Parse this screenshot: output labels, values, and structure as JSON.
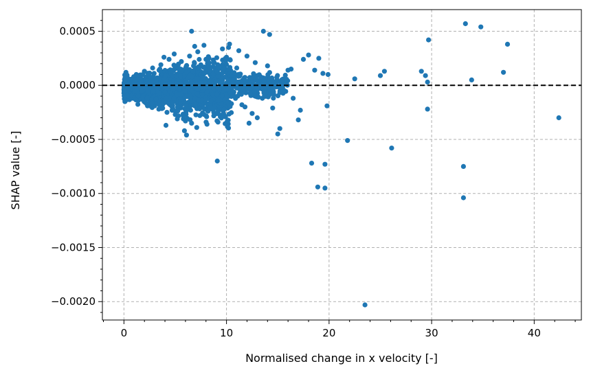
{
  "chart_data": {
    "type": "scatter",
    "title": "",
    "xlabel": "Normalised change in x velocity [-]",
    "ylabel": "SHAP value [-]",
    "xlim": [
      -2.1,
      44.6
    ],
    "ylim": [
      -0.00217,
      0.0007
    ],
    "xticks": [
      0,
      10,
      20,
      30,
      40
    ],
    "xtick_labels": [
      "0",
      "10",
      "20",
      "30",
      "40"
    ],
    "yticks": [
      0.0005,
      0.0,
      -0.0005,
      -0.001,
      -0.0015,
      -0.002
    ],
    "ytick_labels": [
      "0.0005",
      "0.0000",
      "−0.0005",
      "−0.0010",
      "−0.0015",
      "−0.0020"
    ],
    "grid": true,
    "reference_line": {
      "y": 0,
      "style": "dashed",
      "color": "#000000"
    },
    "colors": {
      "points": "#1f77b4",
      "grid": "#b0b0b0",
      "axes": "#000000"
    },
    "series": [
      {
        "points": [
          [
            0.1,
            2e-05
          ],
          [
            0.2,
            -5e-05
          ],
          [
            0.3,
            8e-05
          ],
          [
            0.4,
            -0.0001
          ],
          [
            0.5,
            4e-05
          ],
          [
            0.6,
            -0.00012
          ],
          [
            0.8,
            6e-05
          ],
          [
            1.0,
            -8e-05
          ],
          [
            0.2,
            0.00012
          ],
          [
            0.1,
            -0.00015
          ],
          [
            0.7,
            1e-05
          ],
          [
            1.2,
            0.0001
          ],
          [
            1.4,
            -0.00014
          ],
          [
            1.6,
            3e-05
          ],
          [
            1.8,
            -3e-05
          ],
          [
            2.0,
            0.00013
          ],
          [
            2.2,
            -0.00017
          ],
          [
            2.4,
            5e-05
          ],
          [
            2.6,
            -9e-05
          ],
          [
            2.8,
            0.00016
          ],
          [
            3.0,
            -0.00019
          ],
          [
            3.2,
            2e-05
          ],
          [
            3.4,
            -0.00022
          ],
          [
            3.6,
            0.00019
          ],
          [
            3.8,
            -6e-05
          ],
          [
            4.0,
            0.00011
          ],
          [
            4.2,
            -0.00025
          ],
          [
            4.4,
            0.00024
          ],
          [
            4.6,
            -0.00014
          ],
          [
            4.8,
            7e-05
          ],
          [
            5.0,
            -0.00027
          ],
          [
            5.2,
            0.00018
          ],
          [
            5.4,
            -9e-05
          ],
          [
            5.6,
            0.00022
          ],
          [
            5.8,
            -0.00031
          ],
          [
            6.0,
            4e-05
          ],
          [
            6.2,
            -0.00019
          ],
          [
            6.4,
            0.00027
          ],
          [
            6.6,
            -0.00035
          ],
          [
            6.8,
            0.00012
          ],
          [
            7.0,
            -2e-05
          ],
          [
            7.2,
            0.00031
          ],
          [
            7.4,
            -0.00028
          ],
          [
            7.6,
            9e-05
          ],
          [
            7.8,
            -0.00016
          ],
          [
            8.0,
            0.00024
          ],
          [
            8.2,
            -0.00024
          ],
          [
            8.4,
            0.00015
          ],
          [
            8.6,
            -8e-05
          ],
          [
            8.8,
            0.00021
          ],
          [
            9.0,
            -0.00019
          ],
          [
            9.2,
            6e-05
          ],
          [
            9.4,
            -0.00029
          ],
          [
            9.6,
            0.00018
          ],
          [
            9.8,
            -0.00011
          ],
          [
            10.0,
            0.00026
          ],
          [
            1.5,
            9e-05
          ],
          [
            2.5,
            -0.00012
          ],
          [
            3.5,
            0.00015
          ],
          [
            4.5,
            -0.00018
          ],
          [
            5.5,
            0.00012
          ],
          [
            6.5,
            -0.00023
          ],
          [
            7.5,
            0.00019
          ],
          [
            8.5,
            -0.00017
          ],
          [
            3.9,
            0.00026
          ],
          [
            4.1,
            -0.00037
          ],
          [
            5.9,
            -0.00042
          ],
          [
            6.1,
            -0.00046
          ],
          [
            6.9,
            0.00036
          ],
          [
            7.1,
            -0.00039
          ],
          [
            7.8,
            0.00037
          ],
          [
            8.1,
            -0.00036
          ],
          [
            6.6,
            0.0005
          ],
          [
            9.1,
            -0.0007
          ],
          [
            6.0,
            -0.00033
          ],
          [
            5.2,
            -0.00031
          ],
          [
            4.9,
            0.00029
          ],
          [
            10.5,
            -9e-05
          ],
          [
            11.0,
            0.00016
          ],
          [
            11.5,
            -0.00018
          ],
          [
            12.0,
            0.00027
          ],
          [
            12.5,
            -0.00026
          ],
          [
            13.0,
            9e-05
          ],
          [
            13.5,
            -0.00012
          ],
          [
            14.0,
            0.00018
          ],
          [
            14.5,
            -0.00021
          ],
          [
            15.0,
            -0.00045
          ],
          [
            15.2,
            -0.0004
          ],
          [
            15.5,
            3e-05
          ],
          [
            16.0,
            0.00014
          ],
          [
            16.5,
            -0.00012
          ],
          [
            17.0,
            -0.00032
          ],
          [
            17.2,
            -0.00023
          ],
          [
            10.2,
            0.00035
          ],
          [
            11.2,
            0.00032
          ],
          [
            12.2,
            -0.00035
          ],
          [
            13.6,
            0.0005
          ],
          [
            14.2,
            0.00047
          ],
          [
            13.0,
            -0.0003
          ],
          [
            11.8,
            -0.0002
          ],
          [
            12.8,
            0.00021
          ],
          [
            16.3,
            0.00015
          ],
          [
            17.5,
            0.00024
          ],
          [
            18.0,
            0.00028
          ],
          [
            18.6,
            0.00014
          ],
          [
            19.0,
            0.00025
          ],
          [
            19.4,
            0.00011
          ],
          [
            19.8,
            -0.00019
          ],
          [
            19.9,
            0.0001
          ],
          [
            18.3,
            -0.00072
          ],
          [
            18.9,
            -0.00094
          ],
          [
            19.6,
            -0.00073
          ],
          [
            19.6,
            -0.00095
          ],
          [
            21.8,
            -0.00051
          ],
          [
            23.5,
            -0.00203
          ],
          [
            22.5,
            6e-05
          ],
          [
            25.0,
            9e-05
          ],
          [
            25.4,
            0.00013
          ],
          [
            26.1,
            -0.00058
          ],
          [
            29.0,
            0.00013
          ],
          [
            29.4,
            9e-05
          ],
          [
            29.7,
            0.00042
          ],
          [
            29.6,
            -0.00022
          ],
          [
            29.6,
            3e-05
          ],
          [
            33.1,
            -0.00075
          ],
          [
            33.1,
            -0.00104
          ],
          [
            33.3,
            0.00057
          ],
          [
            34.8,
            0.00054
          ],
          [
            33.9,
            5e-05
          ],
          [
            37.0,
            0.00012
          ],
          [
            37.4,
            0.00038
          ],
          [
            42.4,
            -0.0003
          ]
        ]
      }
    ]
  }
}
